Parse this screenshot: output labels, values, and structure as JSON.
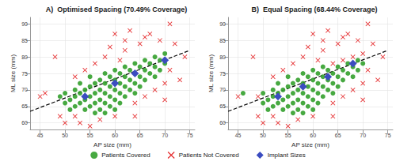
{
  "chart_data": [
    {
      "type": "scatter",
      "title": "A)  Optimised Spacing (70.49% Coverage)",
      "xlabel": "AP size (mm)",
      "ylabel": "ML size (mm)",
      "xlim": [
        43,
        76
      ],
      "xticks": [
        45,
        50,
        55,
        60,
        65,
        70,
        75
      ],
      "ylim": [
        58,
        92
      ],
      "yticks": [
        60,
        65,
        70,
        75,
        80,
        85,
        90
      ],
      "grid": true,
      "legend": "bottom",
      "series": [
        {
          "name": "Patients Covered",
          "type": "scatter",
          "color": "#33a02c",
          "marker": "circle",
          "x": [
            50,
            51,
            52,
            52,
            53,
            53,
            54,
            54,
            54,
            55,
            55,
            55,
            56,
            56,
            56,
            57,
            57,
            57,
            57,
            58,
            58,
            58,
            58,
            59,
            59,
            59,
            59,
            60,
            60,
            60,
            60,
            61,
            61,
            61,
            61,
            62,
            62,
            62,
            62,
            63,
            63,
            63,
            64,
            64,
            64,
            64,
            65,
            65,
            65,
            66,
            66,
            66,
            67,
            67,
            68,
            68,
            68,
            69,
            69,
            70,
            70,
            52,
            53,
            55,
            56,
            58,
            60,
            49,
            50,
            51
          ],
          "y": [
            66,
            67,
            65,
            68,
            66,
            69,
            64,
            67,
            70,
            65,
            68,
            71,
            66,
            69,
            72,
            64,
            67,
            70,
            73,
            66,
            69,
            72,
            75,
            65,
            68,
            71,
            74,
            67,
            70,
            73,
            76,
            66,
            69,
            72,
            75,
            68,
            71,
            74,
            77,
            70,
            73,
            76,
            69,
            72,
            75,
            78,
            71,
            74,
            77,
            73,
            76,
            79,
            75,
            78,
            74,
            77,
            80,
            76,
            79,
            78,
            81,
            70,
            72,
            74,
            63,
            63,
            64,
            68,
            69,
            64
          ]
        },
        {
          "name": "Patients Not Covered",
          "type": "scatter",
          "color": "#e31a1c",
          "marker": "cross",
          "x": [
            45,
            46,
            48,
            49,
            50,
            52,
            53,
            54,
            55,
            56,
            57,
            58,
            59,
            60,
            61,
            62,
            63,
            64,
            65,
            66,
            67,
            68,
            69,
            70,
            71,
            71,
            72,
            73,
            74,
            60,
            62,
            64,
            66,
            52,
            70
          ],
          "y": [
            68,
            69,
            80,
            62,
            60,
            62,
            60,
            76,
            59,
            78,
            61,
            80,
            83,
            62,
            79,
            85,
            88,
            66,
            84,
            68,
            87,
            70,
            85,
            72,
            90,
            76,
            84,
            73,
            80,
            87,
            82,
            62,
            86,
            74,
            67
          ]
        },
        {
          "name": "Implant Sizes",
          "type": "scatter",
          "color": "#3b4cc0",
          "marker": "diamond",
          "x": [
            54,
            60,
            64,
            70
          ],
          "y": [
            68,
            72,
            75,
            79
          ]
        },
        {
          "type": "line",
          "color": "#000000",
          "line_style": "dashed",
          "x": [
            43,
            75
          ],
          "y": [
            63.5,
            82
          ]
        }
      ]
    },
    {
      "type": "scatter",
      "title": "B)  Equal Spacing (68.44% Coverage)",
      "xlabel": "AP size (mm)",
      "ylabel": "ML size (mm)",
      "xlim": [
        43,
        76
      ],
      "xticks": [
        45,
        50,
        55,
        60,
        65,
        70,
        75
      ],
      "ylim": [
        58,
        92
      ],
      "yticks": [
        60,
        65,
        70,
        75,
        80,
        85,
        90
      ],
      "grid": true,
      "legend": "bottom",
      "series": [
        {
          "name": "Patients Covered",
          "type": "scatter",
          "color": "#33a02c",
          "marker": "circle",
          "x": [
            46,
            50,
            51,
            52,
            52,
            53,
            53,
            54,
            54,
            54,
            55,
            55,
            55,
            56,
            56,
            56,
            57,
            57,
            57,
            57,
            58,
            58,
            58,
            58,
            59,
            59,
            59,
            59,
            60,
            60,
            60,
            60,
            61,
            61,
            61,
            61,
            62,
            62,
            62,
            62,
            63,
            63,
            63,
            64,
            64,
            64,
            65,
            65,
            65,
            66,
            66,
            67,
            67,
            68,
            68,
            69,
            69,
            70,
            52,
            53,
            55,
            56,
            58,
            60,
            50,
            51
          ],
          "y": [
            69,
            66,
            67,
            65,
            68,
            66,
            69,
            64,
            67,
            70,
            65,
            68,
            71,
            66,
            69,
            72,
            64,
            67,
            70,
            73,
            66,
            69,
            72,
            75,
            65,
            68,
            71,
            74,
            67,
            70,
            73,
            76,
            66,
            69,
            72,
            75,
            68,
            71,
            74,
            77,
            70,
            73,
            76,
            69,
            72,
            75,
            71,
            74,
            77,
            73,
            76,
            75,
            78,
            74,
            77,
            76,
            79,
            78,
            70,
            72,
            74,
            63,
            63,
            64,
            69,
            64
          ]
        },
        {
          "name": "Patients Not Covered",
          "type": "scatter",
          "color": "#e31a1c",
          "marker": "cross",
          "x": [
            45,
            48,
            49,
            49,
            50,
            52,
            53,
            54,
            55,
            56,
            57,
            58,
            59,
            60,
            61,
            62,
            63,
            64,
            64,
            65,
            66,
            66,
            67,
            68,
            68,
            69,
            70,
            70,
            71,
            71,
            72,
            73,
            74,
            60,
            62,
            64,
            66,
            52,
            70
          ],
          "y": [
            68,
            80,
            62,
            68,
            60,
            62,
            60,
            76,
            59,
            78,
            61,
            80,
            83,
            62,
            79,
            85,
            88,
            66,
            78,
            84,
            68,
            79,
            87,
            70,
            80,
            85,
            72,
            81,
            90,
            76,
            84,
            73,
            80,
            87,
            82,
            62,
            86,
            74,
            67
          ]
        },
        {
          "name": "Implant Sizes",
          "type": "scatter",
          "color": "#3b4cc0",
          "marker": "diamond",
          "x": [
            53,
            58,
            63,
            68
          ],
          "y": [
            68,
            71,
            74,
            78
          ]
        },
        {
          "type": "line",
          "color": "#000000",
          "line_style": "dashed",
          "x": [
            43,
            75
          ],
          "y": [
            63.5,
            82
          ]
        }
      ]
    }
  ]
}
